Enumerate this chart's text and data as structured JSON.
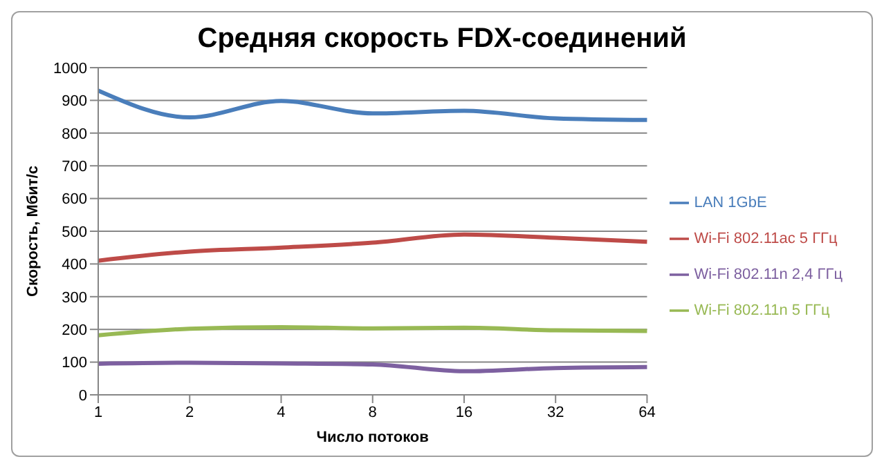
{
  "chart_data": {
    "type": "line",
    "title": "Средняя скорость FDX-соединений",
    "xlabel": "Число потоков",
    "ylabel": "Скорость,  Мбит/с",
    "categories": [
      "1",
      "2",
      "4",
      "8",
      "16",
      "32",
      "64"
    ],
    "series": [
      {
        "name": "LAN 1GbE",
        "color": "#4a7ebb",
        "values": [
          930,
          848,
          898,
          860,
          868,
          845,
          840
        ]
      },
      {
        "name": "Wi-Fi 802.11ac 5 ГГц",
        "color": "#be4b48",
        "values": [
          410,
          438,
          450,
          465,
          490,
          480,
          468
        ]
      },
      {
        "name": "Wi-Fi 802.11n 5 ГГц",
        "color": "#98b954",
        "values": [
          182,
          202,
          207,
          203,
          205,
          197,
          195
        ]
      },
      {
        "name": "Wi-Fi 802.11n 2,4 ГГц",
        "color": "#7d60a0",
        "values": [
          95,
          98,
          96,
          93,
          72,
          82,
          85
        ]
      }
    ],
    "ylim": [
      0,
      1000
    ],
    "yticks": [
      0,
      100,
      200,
      300,
      400,
      500,
      600,
      700,
      800,
      900,
      1000
    ],
    "grid": "y",
    "legend": "right",
    "marker": "none",
    "line_style": "solid"
  }
}
